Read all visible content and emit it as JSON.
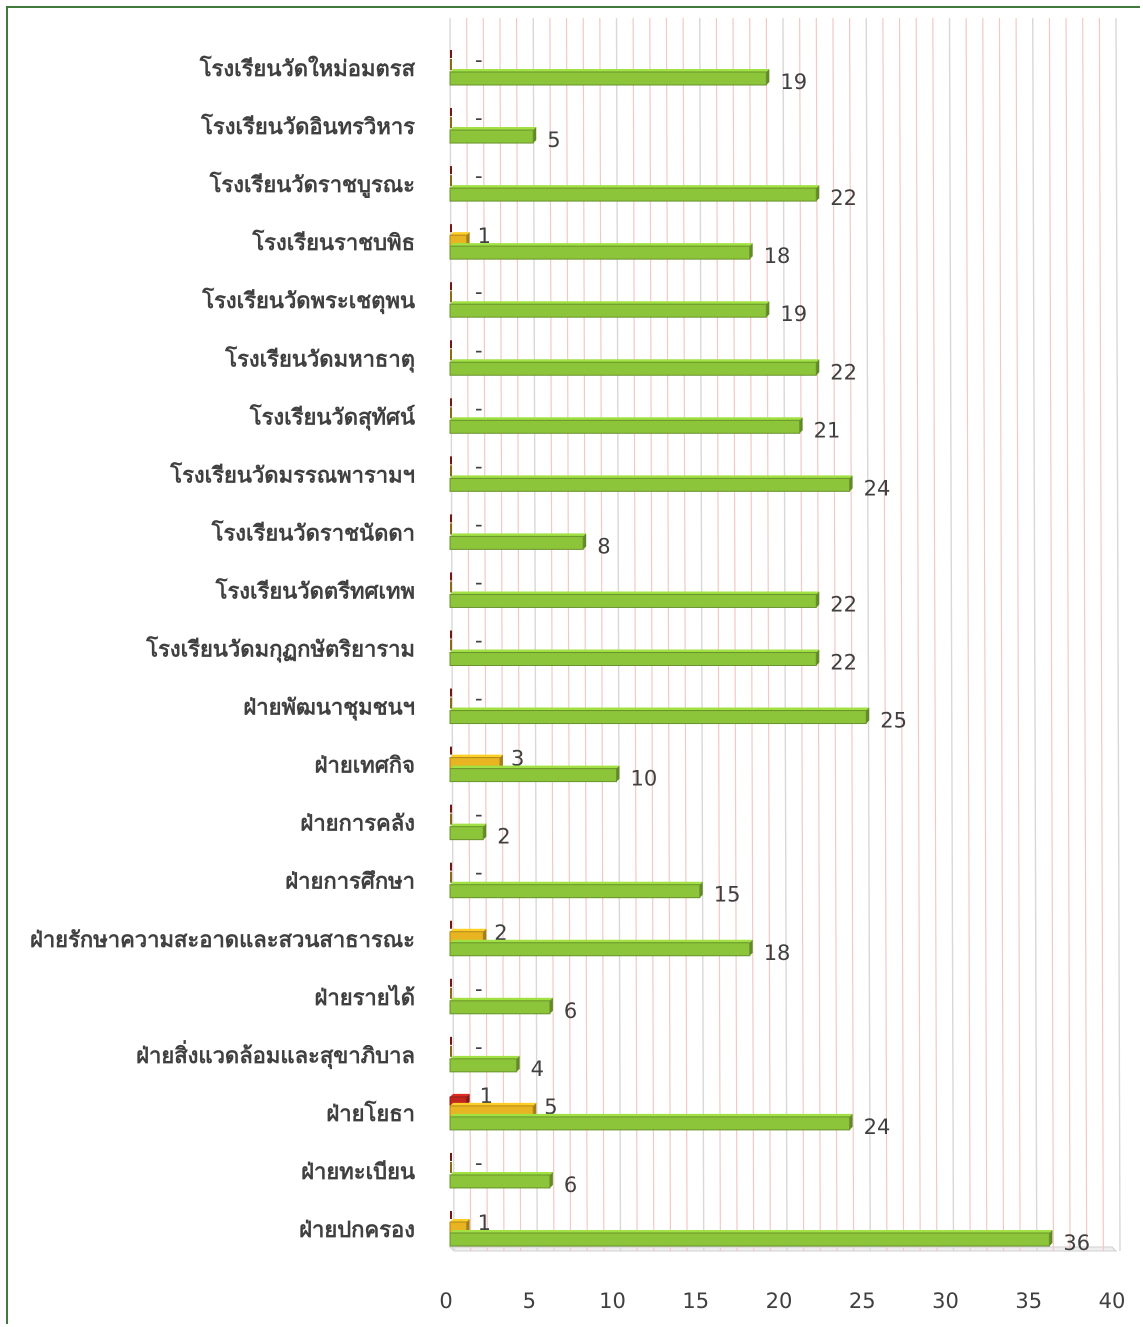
{
  "chart_data": {
    "type": "bar",
    "orientation": "horizontal",
    "style": "3d-clustered",
    "categories": [
      "โรงเรียนวัดใหม่อมตรส",
      "โรงเรียนวัดอินทรวิหาร",
      "โรงเรียนวัดราชบูรณะ",
      "โรงเรียนราชบพิธ",
      "โรงเรียนวัดพระเชตุพน",
      "โรงเรียนวัดมหาธาตุ",
      "โรงเรียนวัดสุทัศน์",
      "โรงเรียนวัดมรรณพารามฯ",
      "โรงเรียนวัดราชนัดดา",
      "โรงเรียนวัดตรีทศเทพ",
      "โรงเรียนวัดมกุฏกษัตริยาราม",
      "ฝ่ายพัฒนาชุมชนฯ",
      "ฝ่ายเทศกิจ",
      "ฝ่ายการคลัง",
      "ฝ่ายการศึกษา",
      "ฝ่ายรักษาความสะอาดและสวนสาธารณะ",
      "ฝ่ายรายได้",
      "ฝ่ายสิ่งแวดล้อมและสุขาภิบาล",
      "ฝ่ายโยธา",
      "ฝ่ายทะเบียน",
      "ฝ่ายปกครอง"
    ],
    "series": [
      {
        "color": "#c0261d",
        "values": [
          null,
          null,
          null,
          null,
          null,
          null,
          null,
          null,
          null,
          null,
          null,
          null,
          null,
          null,
          null,
          null,
          null,
          null,
          1,
          null,
          null
        ],
        "labels": [
          "",
          "",
          "",
          "",
          "",
          "",
          "",
          "",
          "",
          "",
          "",
          "",
          "",
          "",
          "",
          "",
          "",
          "",
          "1",
          "",
          ""
        ]
      },
      {
        "color": "#e8b422",
        "values": [
          null,
          null,
          null,
          1,
          null,
          null,
          null,
          null,
          null,
          null,
          null,
          null,
          3,
          null,
          null,
          2,
          null,
          null,
          5,
          null,
          1
        ],
        "labels": [
          "-",
          "-",
          "-",
          "1",
          "-",
          "-",
          "-",
          "-",
          "-",
          "-",
          "-",
          "-",
          "3",
          "-",
          "-",
          "2",
          "-",
          "-",
          "5",
          "-",
          "1"
        ]
      },
      {
        "color": "#8cc43a",
        "values": [
          19,
          5,
          22,
          18,
          19,
          22,
          21,
          24,
          8,
          22,
          22,
          25,
          10,
          2,
          15,
          18,
          6,
          4,
          24,
          6,
          36
        ],
        "labels": [
          "19",
          "5",
          "22",
          "18",
          "19",
          "22",
          "21",
          "24",
          "8",
          "22",
          "22",
          "25",
          "10",
          "2",
          "15",
          "18",
          "6",
          "4",
          "24",
          "6",
          "36"
        ]
      }
    ],
    "xlim": [
      0,
      40
    ],
    "xticks": [
      "0",
      "5",
      "10",
      "15",
      "20",
      "25",
      "30",
      "35",
      "40"
    ],
    "grid": true,
    "legend": "none",
    "title": "",
    "xlabel": "",
    "ylabel": ""
  }
}
